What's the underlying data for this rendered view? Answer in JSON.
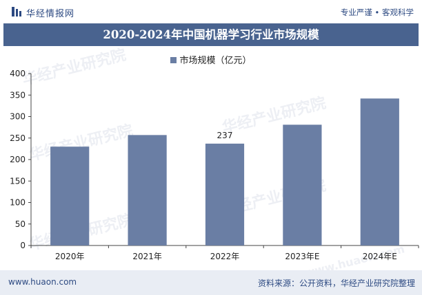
{
  "header": {
    "brand": "华经情报网",
    "slogan": "专业严谨 • 客观科学"
  },
  "footer": {
    "url": "www.huaon.com",
    "source": "资料来源：公开资料，华经产业研究院整理"
  },
  "watermark": {
    "text": "华经产业研究院",
    "url": "www.huaon.com"
  },
  "colors": {
    "bar": "#6a7ea4",
    "title_bg": "#49638f",
    "brand": "#2d4a82"
  },
  "chart_data": {
    "type": "bar",
    "title": "2020-2024年中国机器学习行业市场规模",
    "categories": [
      "2020年",
      "2021年",
      "2022年",
      "2023年E",
      "2024年E"
    ],
    "series": [
      {
        "name": "市场规模（亿元）",
        "values": [
          230,
          257,
          237,
          281,
          342
        ]
      }
    ],
    "data_labels": [
      null,
      null,
      "237",
      null,
      null
    ],
    "ylim": [
      0,
      400
    ],
    "yticks": [
      0,
      50,
      100,
      150,
      200,
      250,
      300,
      350,
      400
    ],
    "xlabel": "",
    "ylabel": "",
    "legend": "top-center",
    "grid": false
  }
}
